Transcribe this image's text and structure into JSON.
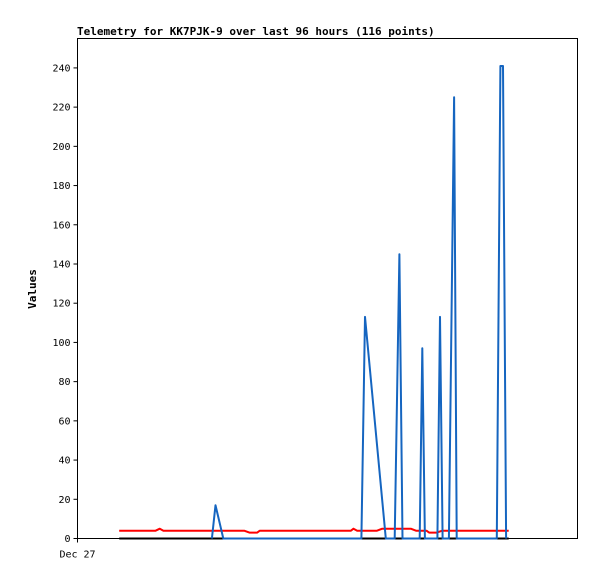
{
  "chart_data": {
    "type": "line",
    "title": "Telemetry for KK7PJK-9 over last 96 hours (116 points)",
    "xlabel": "",
    "ylabel": "Values",
    "ylim": [
      0,
      255
    ],
    "xlim": [
      0,
      96
    ],
    "x_tick_labels": [
      {
        "x": 0,
        "label": "Dec 27"
      }
    ],
    "y_ticks": [
      0,
      20,
      40,
      60,
      80,
      100,
      120,
      140,
      160,
      180,
      200,
      220,
      240
    ],
    "grid": false,
    "legend": "none",
    "series": [
      {
        "color": "#000000",
        "points": [
          [
            8,
            0
          ],
          [
            82.8,
            0
          ]
        ]
      },
      {
        "color": "#ff0000",
        "points": [
          [
            8,
            4
          ],
          [
            15,
            4
          ],
          [
            15.8,
            5
          ],
          [
            16.5,
            4
          ],
          [
            32,
            4
          ],
          [
            33,
            3
          ],
          [
            34.5,
            3
          ],
          [
            35,
            4
          ],
          [
            52.5,
            4
          ],
          [
            53,
            5
          ],
          [
            53.7,
            4
          ],
          [
            57.5,
            4
          ],
          [
            58.5,
            5
          ],
          [
            64,
            5
          ],
          [
            65,
            4
          ],
          [
            67,
            4
          ],
          [
            67.5,
            3
          ],
          [
            69,
            3
          ],
          [
            70,
            4
          ],
          [
            82.8,
            4
          ]
        ]
      },
      {
        "color": "#1565c0",
        "points": [
          [
            25.8,
            0
          ],
          [
            26.5,
            17
          ],
          [
            28,
            0
          ],
          [
            54.5,
            0
          ],
          [
            55.2,
            113
          ],
          [
            59.2,
            0
          ],
          [
            60.9,
            0
          ],
          [
            61.8,
            145
          ],
          [
            62.4,
            0
          ],
          [
            65.7,
            0
          ],
          [
            66.2,
            97
          ],
          [
            66.7,
            0
          ],
          [
            69.1,
            0
          ],
          [
            69.6,
            113
          ],
          [
            70.1,
            0
          ],
          [
            71.3,
            0
          ],
          [
            72.3,
            225
          ],
          [
            72.8,
            0
          ],
          [
            80.5,
            0
          ],
          [
            81.2,
            241
          ],
          [
            81.7,
            241
          ],
          [
            82.3,
            0
          ]
        ]
      }
    ]
  }
}
